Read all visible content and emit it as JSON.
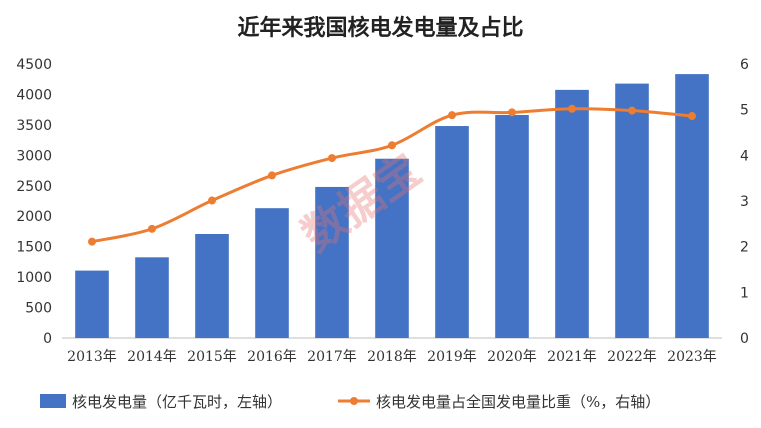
{
  "watermark": "数据宝",
  "chart_data": {
    "type": "bar",
    "title": "近年来我国核电发电量及占比",
    "categories": [
      "2013年",
      "2014年",
      "2015年",
      "2016年",
      "2017年",
      "2018年",
      "2019年",
      "2020年",
      "2021年",
      "2022年",
      "2023年"
    ],
    "series": [
      {
        "name": "核电发电量（亿千瓦时，左轴）",
        "type": "bar",
        "axis": "left",
        "color": "#4472C4",
        "values": [
          1107,
          1325,
          1708,
          2132,
          2481,
          2944,
          3481,
          3662,
          4075,
          4178,
          4334
        ]
      },
      {
        "name": "核电发电量占全国发电量比重（%，右轴）",
        "type": "line",
        "axis": "right",
        "color": "#ED7D31",
        "values": [
          2.11,
          2.39,
          3.01,
          3.56,
          3.94,
          4.22,
          4.88,
          4.94,
          5.02,
          4.98,
          4.86
        ]
      }
    ],
    "y_left": {
      "min": 0,
      "max": 4500,
      "ticks": [
        "0",
        "500",
        "1000",
        "1500",
        "2000",
        "2500",
        "3000",
        "3500",
        "4000",
        "4500"
      ]
    },
    "y_right": {
      "min": 0,
      "max": 6,
      "ticks": [
        "0",
        "1",
        "2",
        "3",
        "4",
        "5",
        "6"
      ]
    },
    "grid": false,
    "legend": "bottom"
  }
}
